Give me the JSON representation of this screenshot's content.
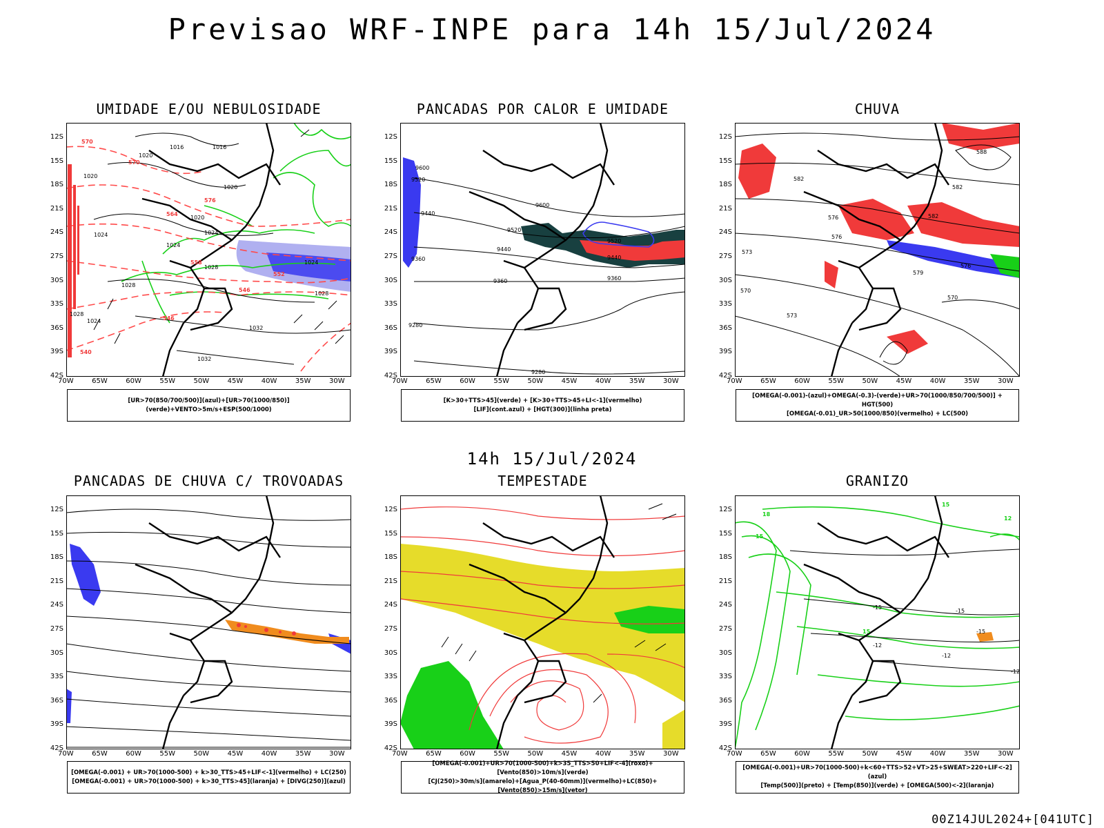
{
  "title": "Previsao WRF-INPE  para 14h 15/Jul/2024",
  "middle_title": "14h 15/Jul/2024",
  "footer": "00Z14JUL2024+[041UTC]",
  "lat_labels": [
    "12S",
    "15S",
    "18S",
    "21S",
    "24S",
    "27S",
    "30S",
    "33S",
    "36S",
    "39S",
    "42S"
  ],
  "lon_labels": [
    "70W",
    "65W",
    "60W",
    "55W",
    "50W",
    "45W",
    "40W",
    "35W",
    "30W"
  ],
  "colors": {
    "blue": "#3a3af0",
    "lavender": "#a0a0f0",
    "green": "#18d018",
    "red": "#f03a3a",
    "dark_teal": "#184040",
    "yellow": "#e6dc2a",
    "orange": "#f08c1e",
    "dashed_red": "#ff5050"
  },
  "panels": [
    {
      "id": "umidade",
      "title": "UMIDADE E/OU NEBULOSIDADE",
      "legend": [
        "[UR>70(850/700/500)](azul)+[UR>70(1000/850)](verde)+VENTO>5m/s+ESP(500/1000)"
      ],
      "contour_labels": [
        "1020",
        "1016",
        "1016",
        "1020",
        "1024",
        "1020",
        "1024",
        "1024",
        "1028",
        "1028",
        "1028",
        "1032",
        "1032",
        "1024",
        "1028",
        "1024",
        "1020",
        "570",
        "570",
        "576",
        "564",
        "558",
        "552",
        "546",
        "540",
        "546"
      ]
    },
    {
      "id": "pancadas_calor",
      "title": "PANCADAS POR CALOR E UMIDADE",
      "legend": [
        "[K>30+TTS>45](verde) + [K>30+TTS>45+LI<-1](vermelho)",
        "[LIF](cont.azul) + [HGT(300)](linha preta)"
      ],
      "contour_labels": [
        "9600",
        "9520",
        "9440",
        "9360",
        "9600",
        "9520",
        "9440",
        "9520",
        "9440",
        "9360",
        "9360",
        "9280",
        "9280"
      ]
    },
    {
      "id": "chuva",
      "title": "CHUVA",
      "legend": [
        "[OMEGA(-0.001)-(azul)+OMEGA(-0.3)-(verde)+UR>70(1000/850/700/500)] + HGT(500)",
        "[OMEGA(-0.01)_UR>50(1000/850)(vermelho) + LC(500)"
      ],
      "contour_labels": [
        "582",
        "588",
        "582",
        "576",
        "582",
        "576",
        "573",
        "570",
        "573",
        "570",
        "576",
        "579"
      ]
    },
    {
      "id": "trovoadas",
      "title": "PANCADAS DE CHUVA C/ TROVOADAS",
      "legend": [
        "[OMEGA(-0.001) + UR>70(1000-500) + k>30_TTS>45+LIF<-1](vermelho) + LC(250)",
        "[OMEGA(-0.001) + UR>70(1000-500) + k>30_TTS>45](laranja) + [DIVG(250)](azul)"
      ],
      "contour_labels": []
    },
    {
      "id": "tempestade",
      "title": "TEMPESTADE",
      "legend": [
        "[OMEGA(-0.001)+UR>70(1000-500)+k>35_TTS>50+LIF<-4](roxo)+[Vento(850)>10m/s](verde)",
        "[CJ(250)>30m/s](amarelo)+[Agua_P(40-60mm)](vermelho)+LC(850)+[Vento(850)>15m/s](vetor)"
      ],
      "contour_labels": []
    },
    {
      "id": "granizo",
      "title": "GRANIZO",
      "legend": [
        "[OMEGA(-0.001)+UR>70(1000-500)+k<60+TTS>52+VT>25+SWEAT>220+LIF<-2](azul)",
        "[Temp(500)](preto) + [Temp(850)](verde) + [OMEGA(500)<-2](laranja)"
      ],
      "contour_labels": [
        "-15",
        "-15",
        "-15",
        "-12",
        "-12",
        "-12",
        "18",
        "15",
        "15",
        "12",
        "15"
      ]
    }
  ]
}
